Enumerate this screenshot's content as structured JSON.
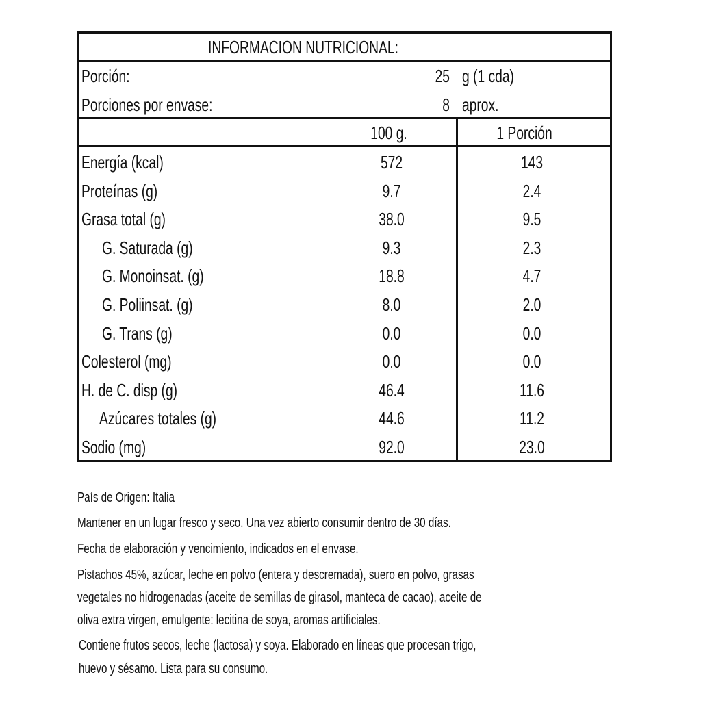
{
  "table": {
    "title": "INFORMACION NUTRICIONAL:",
    "portion_label": "Porción:",
    "portion_value": "25",
    "portion_unit": "g (1 cda)",
    "servings_label": "Porciones por envase:",
    "servings_value": "8",
    "servings_unit": "aprox.",
    "col_100g": "100 g.",
    "col_portion": "1 Porción",
    "rows": [
      {
        "label": "Energía (kcal)",
        "v100": "572",
        "vp": "143",
        "indent": false
      },
      {
        "label": "Proteínas (g)",
        "v100": "9.7",
        "vp": "2.4",
        "indent": false
      },
      {
        "label": "Grasa total (g)",
        "v100": "38.0",
        "vp": "9.5",
        "indent": false
      },
      {
        "label": "G. Saturada (g)",
        "v100": "9.3",
        "vp": "2.3",
        "indent": true
      },
      {
        "label": "G. Monoinsat. (g)",
        "v100": "18.8",
        "vp": "4.7",
        "indent": true
      },
      {
        "label": "G. Poliinsat. (g)",
        "v100": "8.0",
        "vp": "2.0",
        "indent": true
      },
      {
        "label": "G. Trans (g)",
        "v100": "0.0",
        "vp": "0.0",
        "indent": true
      },
      {
        "label": "Colesterol (mg)",
        "v100": "0.0",
        "vp": "0.0",
        "indent": false
      },
      {
        "label": "H. de C. disp (g)",
        "v100": "46.4",
        "vp": "11.6",
        "indent": false
      },
      {
        "label": "Azúcares totales (g)",
        "v100": "44.6",
        "vp": "11.2",
        "indent": true
      },
      {
        "label": "Sodio (mg)",
        "v100": "92.0",
        "vp": "23.0",
        "indent": false
      }
    ]
  },
  "notes": [
    "País de Origen: Italia",
    "Mantener en un lugar fresco y seco. Una vez abierto consumir dentro de 30 días.",
    "Fecha de elaboración y  vencimiento, indicados en el envase.",
    "Pistachos 45%, azúcar, leche en polvo (entera y descremada), suero en polvo, grasas",
    "vegetales no hidrogenadas (aceite de semillas de girasol, manteca de cacao), aceite de",
    "oliva extra virgen, emulgente: lecitina de soya, aromas artificiales.",
    "Contiene  frutos secos, leche (lactosa) y soya. Elaborado en líneas que procesan trigo,",
    " huevo y sésamo.  Lista para su consumo."
  ]
}
